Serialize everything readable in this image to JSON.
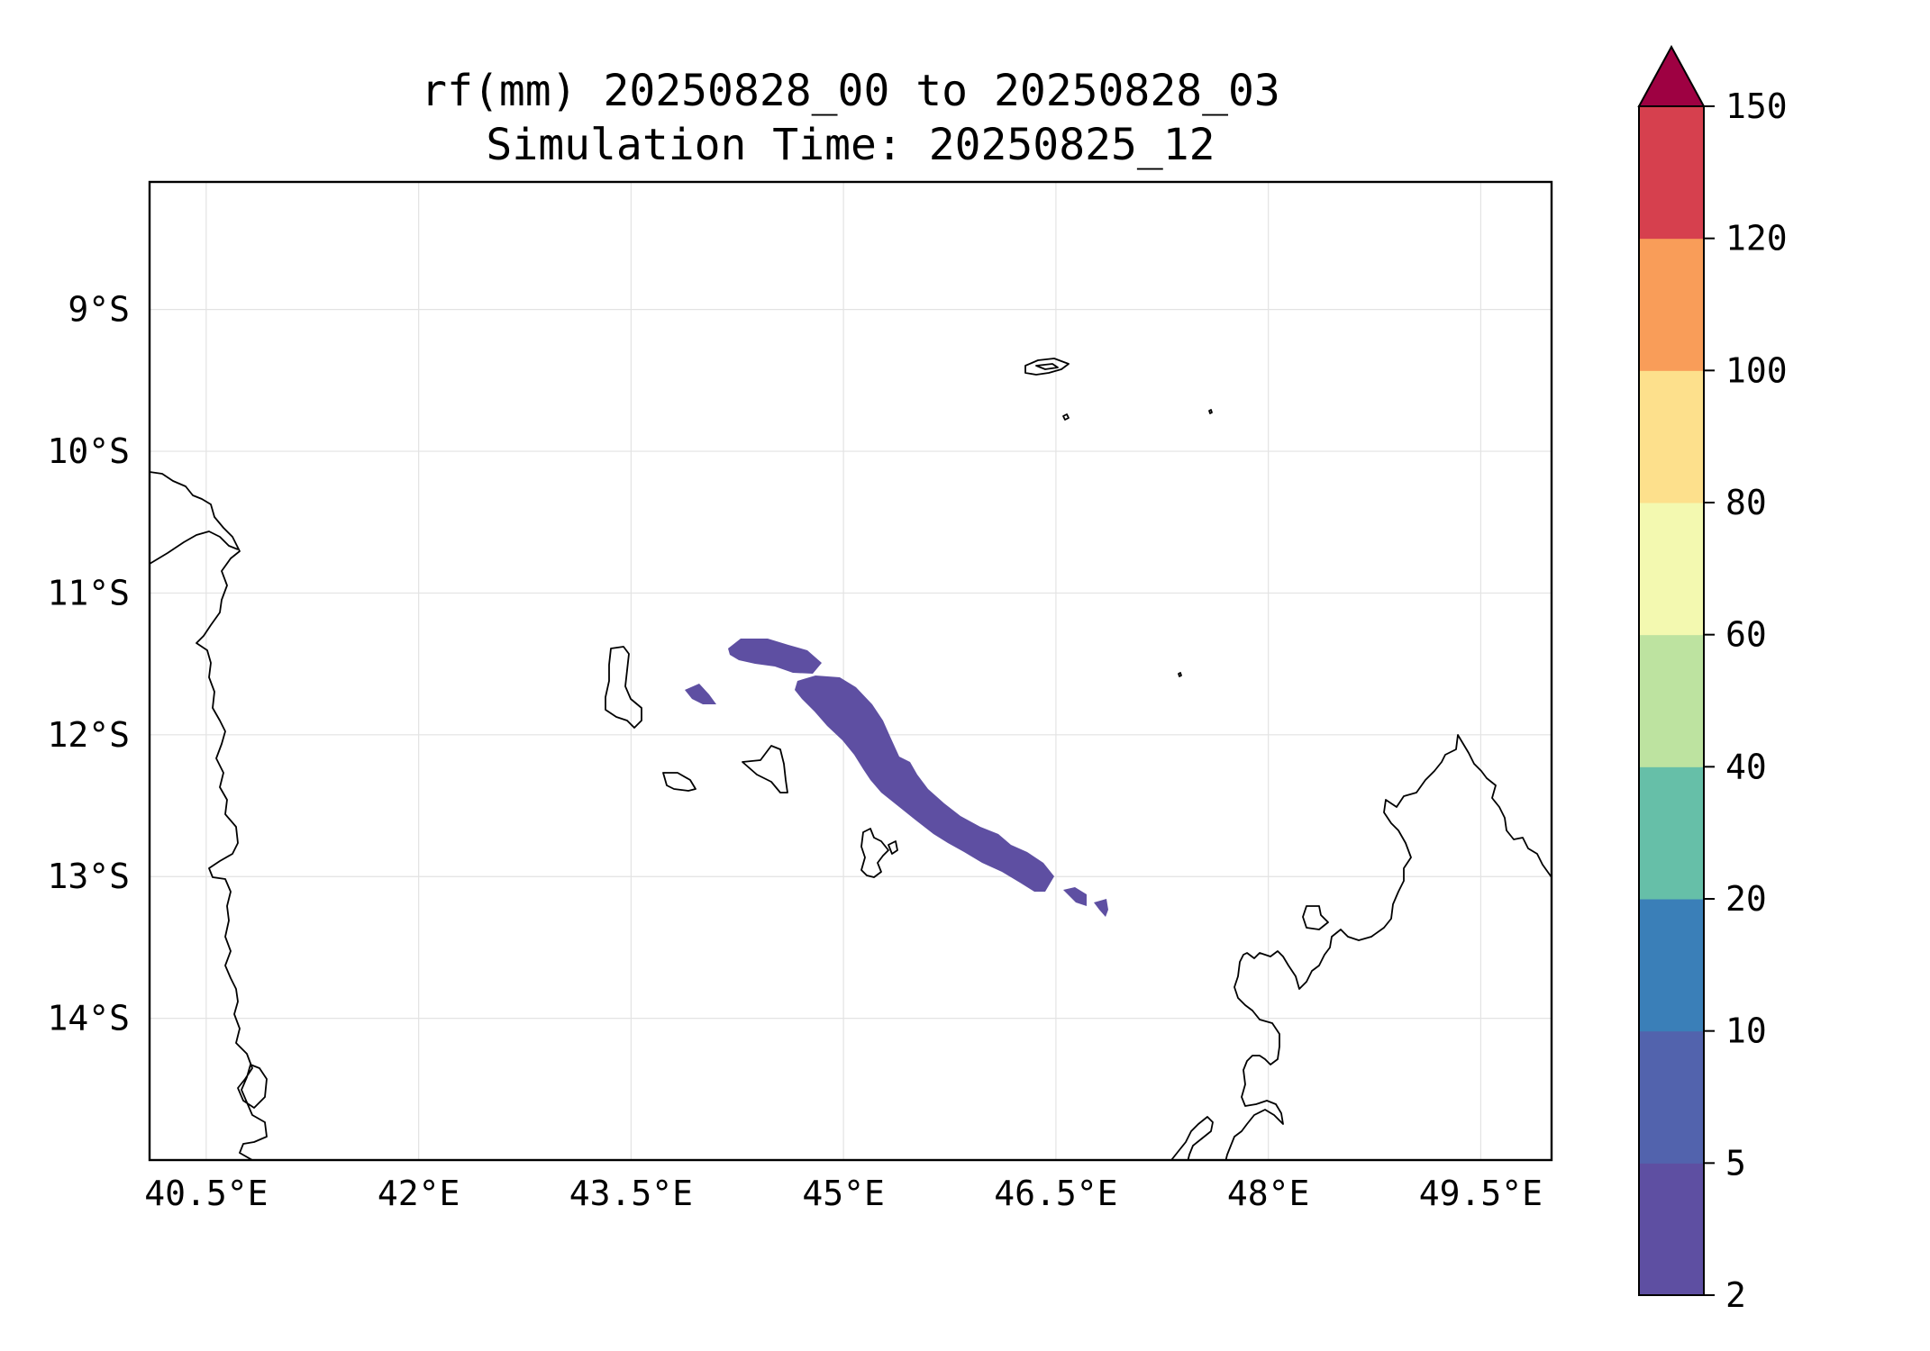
{
  "title": {
    "line1": "rf(mm) 20250828_00 to 20250828_03",
    "line2": "Simulation Time: 20250825_12"
  },
  "map": {
    "lon_range": [
      40.1,
      50.0
    ],
    "lat_range": [
      -15.0,
      -8.1
    ],
    "x_ticks": [
      {
        "lon": 40.5,
        "label": "40.5°E"
      },
      {
        "lon": 42.0,
        "label": "42°E"
      },
      {
        "lon": 43.5,
        "label": "43.5°E"
      },
      {
        "lon": 45.0,
        "label": "45°E"
      },
      {
        "lon": 46.5,
        "label": "46.5°E"
      },
      {
        "lon": 48.0,
        "label": "48°E"
      },
      {
        "lon": 49.5,
        "label": "49.5°E"
      }
    ],
    "y_ticks": [
      {
        "lat": -9,
        "label": "9°S"
      },
      {
        "lat": -10,
        "label": "10°S"
      },
      {
        "lat": -11,
        "label": "11°S"
      },
      {
        "lat": -12,
        "label": "12°S"
      },
      {
        "lat": -13,
        "label": "13°S"
      },
      {
        "lat": -14,
        "label": "14°S"
      }
    ],
    "gridlines": true,
    "coastline_color": "#000000",
    "rain_band_color": "#5e4fa2"
  },
  "colorbar": {
    "levels": [
      "2",
      "5",
      "10",
      "20",
      "40",
      "60",
      "80",
      "100",
      "120",
      "150"
    ],
    "colors": [
      "#5e4fa2",
      "#5263ad",
      "#3a7fb8",
      "#66bfa8",
      "#bde3a0",
      "#f3f9b0",
      "#fde08c",
      "#f99d59",
      "#d6404e"
    ],
    "extend_color": "#9e0142",
    "extend": "max"
  },
  "chart_data": {
    "type": "heatmap",
    "title": "rf(mm) 20250828_00 to 20250828_03\nSimulation Time: 20250825_12",
    "xlabel": "",
    "ylabel": "",
    "units": "mm",
    "xlim": [
      40.1,
      50.0
    ],
    "ylim": [
      -15.0,
      -8.1
    ],
    "colorbar_levels": [
      2,
      5,
      10,
      20,
      40,
      60,
      80,
      100,
      120,
      150
    ],
    "features": [
      {
        "name": "main-rain-band",
        "range": "2-5",
        "lon_span": [
          44.75,
          46.45
        ],
        "lat_span": [
          -13.1,
          -11.7
        ]
      },
      {
        "name": "northern-rain-cell",
        "range": "2-5",
        "lon_span": [
          44.3,
          44.85
        ],
        "lat_span": [
          -11.65,
          -11.35
        ]
      },
      {
        "name": "western-rain-cell",
        "range": "2-5",
        "lon_span": [
          43.8,
          44.0
        ],
        "lat_span": [
          -11.85,
          -11.7
        ]
      },
      {
        "name": "southeastern-rain-cells",
        "range": "2-5",
        "lon_span": [
          46.5,
          46.8
        ],
        "lat_span": [
          -13.3,
          -13.05
        ]
      }
    ]
  }
}
